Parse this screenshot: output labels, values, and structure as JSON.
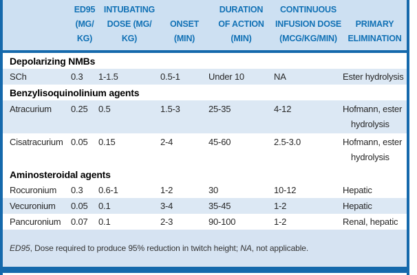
{
  "colors": {
    "accent_blue": "#1569ac",
    "header_text_blue": "#1171b5",
    "header_bg": "#cde0f2",
    "row_shade_bg": "#dce8f4",
    "footer_bg": "#d6e3f2",
    "body_text": "#262626"
  },
  "table": {
    "headers": {
      "name": "",
      "ed95": "ED95\n(MG/\nKG)",
      "intubating": "INTUBATING\nDOSE (MG/\nKG)",
      "onset": "ONSET\n(MIN)",
      "duration": "DURATION\nOF ACTION\n(MIN)",
      "infusion": "CONTINUOUS\nINFUSION DOSE\n(MCG/KG/MIN)",
      "elimination": "PRIMARY\nELIMINATION"
    },
    "rows": [
      {
        "type": "section",
        "label": "Depolarizing NMBs"
      },
      {
        "type": "drug",
        "shaded": true,
        "name": "SCh",
        "ed95": "0.3",
        "intubating": "1-1.5",
        "onset": "0.5-1",
        "duration": "Under 10",
        "infusion": "NA",
        "elimination": "Ester hydrolysis"
      },
      {
        "type": "section",
        "label": "Benzylisoquinolinium agents"
      },
      {
        "type": "drug",
        "shaded": true,
        "name": "Atracurium",
        "ed95": "0.25",
        "intubating": "0.5",
        "onset": "1.5-3",
        "duration": "25-35",
        "infusion": "4-12",
        "elimination": "Hofmann, ester hydrolysis"
      },
      {
        "type": "drug",
        "shaded": false,
        "name": "Cisatracurium",
        "ed95": "0.05",
        "intubating": "0.15",
        "onset": "2-4",
        "duration": "45-60",
        "infusion": "2.5-3.0",
        "elimination": "Hofmann, ester hydrolysis"
      },
      {
        "type": "section",
        "label": "Aminosteroidal agents"
      },
      {
        "type": "drug",
        "shaded": false,
        "name": "Rocuronium",
        "ed95": "0.3",
        "intubating": "0.6-1",
        "onset": "1-2",
        "duration": "30",
        "infusion": "10-12",
        "elimination": "Hepatic"
      },
      {
        "type": "drug",
        "shaded": true,
        "name": "Vecuronium",
        "ed95": "0.05",
        "intubating": "0.1",
        "onset": "3-4",
        "duration": "35-45",
        "infusion": "1-2",
        "elimination": "Hepatic"
      },
      {
        "type": "drug",
        "shaded": false,
        "name": "Pancuronium",
        "ed95": "0.07",
        "intubating": "0.1",
        "onset": "2-3",
        "duration": "90-100",
        "infusion": "1-2",
        "elimination": "Renal, hepatic"
      }
    ],
    "footnote": {
      "term1": "ED95",
      "def1": ", Dose required to produce 95% reduction in twitch height; ",
      "term2": "NA",
      "def2": ", not applicable."
    }
  }
}
